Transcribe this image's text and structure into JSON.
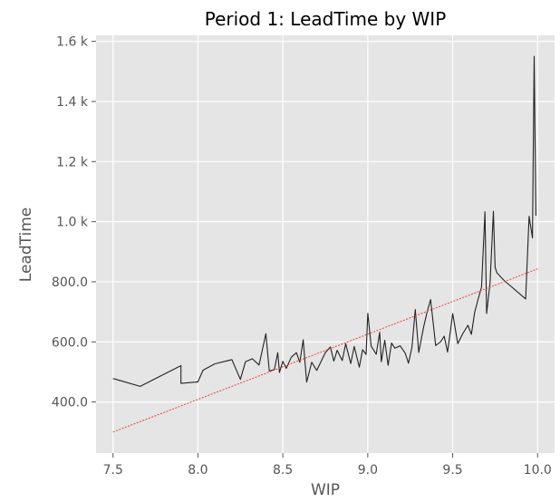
{
  "chart_data": {
    "type": "line",
    "title": "Period 1: LeadTime by WIP",
    "xlabel": "WIP",
    "ylabel": "LeadTime",
    "xlim": [
      7.4,
      10.1
    ],
    "ylim": [
      230,
      1620
    ],
    "grid": true,
    "background": "#E5E5E5",
    "grid_color": "#FFFFFF",
    "x_ticks": [
      7.5,
      8.0,
      8.5,
      9.0,
      9.5,
      10.0
    ],
    "x_tick_labels": [
      "7.5",
      "8.0",
      "8.5",
      "9.0",
      "9.5",
      "10.0"
    ],
    "y_ticks": [
      400,
      600,
      800,
      1000,
      1200,
      1400,
      1600
    ],
    "y_tick_labels": [
      "400.0",
      "600.0",
      "800.0",
      "1.0 k",
      "1.2 k",
      "1.4 k",
      "1.6 k"
    ],
    "series": [
      {
        "color": "#222222",
        "style": "solid",
        "x": [
          7.5,
          7.66,
          7.9,
          7.9,
          8.0,
          8.03,
          8.1,
          8.2,
          8.25,
          8.28,
          8.32,
          8.36,
          8.4,
          8.42,
          8.45,
          8.47,
          8.48,
          8.5,
          8.52,
          8.55,
          8.58,
          8.6,
          8.62,
          8.64,
          8.67,
          8.7,
          8.75,
          8.78,
          8.8,
          8.82,
          8.85,
          8.87,
          8.9,
          8.92,
          8.95,
          8.97,
          8.99,
          9.0,
          9.02,
          9.05,
          9.07,
          9.08,
          9.1,
          9.12,
          9.14,
          9.16,
          9.19,
          9.22,
          9.24,
          9.26,
          9.28,
          9.3,
          9.33,
          9.35,
          9.37,
          9.4,
          9.43,
          9.45,
          9.47,
          9.5,
          9.53,
          9.56,
          9.59,
          9.61,
          9.63,
          9.65,
          9.67,
          9.69,
          9.7,
          9.72,
          9.74,
          9.75,
          9.76,
          9.8,
          9.93,
          9.95,
          9.97,
          9.98,
          9.99
        ],
        "y": [
          478,
          452,
          521,
          462,
          467,
          506,
          527,
          541,
          475,
          534,
          544,
          523,
          627,
          503,
          508,
          564,
          498,
          535,
          512,
          549,
          564,
          532,
          607,
          466,
          532,
          505,
          564,
          583,
          536,
          572,
          538,
          594,
          528,
          585,
          516,
          574,
          558,
          695,
          586,
          559,
          632,
          534,
          605,
          522,
          596,
          579,
          587,
          563,
          529,
          582,
          708,
          565,
          652,
          700,
          741,
          588,
          601,
          619,
          566,
          694,
          594,
          628,
          655,
          625,
          699,
          743,
          782,
          1033,
          694,
          796,
          1034,
          848,
          830,
          806,
          743,
          1018,
          946,
          1550,
          1020
        ]
      },
      {
        "color": "#E8413A",
        "style": "dotted",
        "x": [
          7.5,
          10.0
        ],
        "y": [
          300,
          843
        ]
      }
    ]
  }
}
